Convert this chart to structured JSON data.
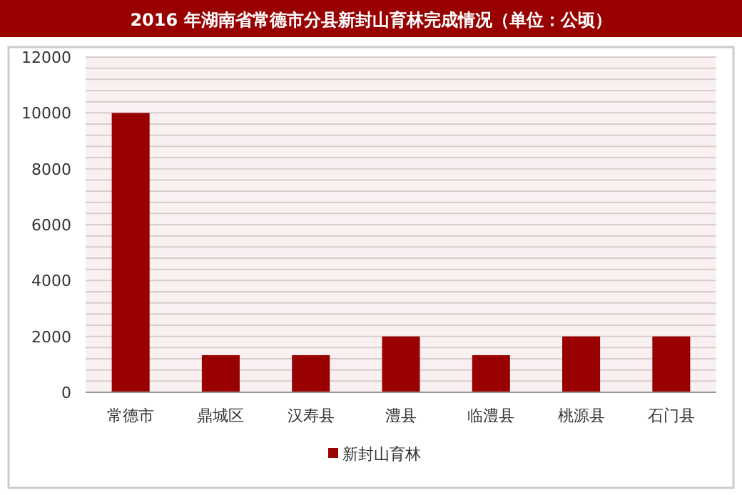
{
  "chart_data": {
    "type": "bar",
    "title": "2016 年湖南省常德市分县新封山育林完成情况（单位：公顷）",
    "categories": [
      "常德市",
      "鼎城区",
      "汉寿县",
      "澧县",
      "临澧县",
      "桃源县",
      "石门县"
    ],
    "series": [
      {
        "name": "新封山育林",
        "color": "#990000",
        "values": [
          10000,
          1330,
          1330,
          2000,
          1330,
          2000,
          2000
        ]
      }
    ],
    "ylim": [
      0,
      12000
    ],
    "yticks": [
      0,
      {
        "value": 400,
        "label": null
      },
      {
        "value": 800,
        "label": null
      },
      {
        "value": 1200,
        "label": null
      },
      {
        "value": 1600,
        "label": null
      },
      2000,
      {
        "value": 2400,
        "label": null
      },
      {
        "value": 2800,
        "label": null
      },
      {
        "value": 3200,
        "label": null
      },
      {
        "value": 3600,
        "label": null
      },
      4000,
      {
        "value": 4400,
        "label": null
      },
      {
        "value": 4800,
        "label": null
      },
      {
        "value": 5200,
        "label": null
      },
      {
        "value": 5600,
        "label": null
      },
      6000,
      {
        "value": 6400,
        "label": null
      },
      {
        "value": 6800,
        "label": null
      },
      {
        "value": 7200,
        "label": null
      },
      {
        "value": 7600,
        "label": null
      },
      8000,
      {
        "value": 8400,
        "label": null
      },
      {
        "value": 8800,
        "label": null
      },
      {
        "value": 9200,
        "label": null
      },
      {
        "value": 9600,
        "label": null
      },
      10000,
      {
        "value": 10400,
        "label": null
      },
      {
        "value": 10800,
        "label": null
      },
      {
        "value": 11200,
        "label": null
      },
      {
        "value": 11600,
        "label": null
      },
      12000
    ],
    "grid": "y",
    "legend": "bottom"
  }
}
